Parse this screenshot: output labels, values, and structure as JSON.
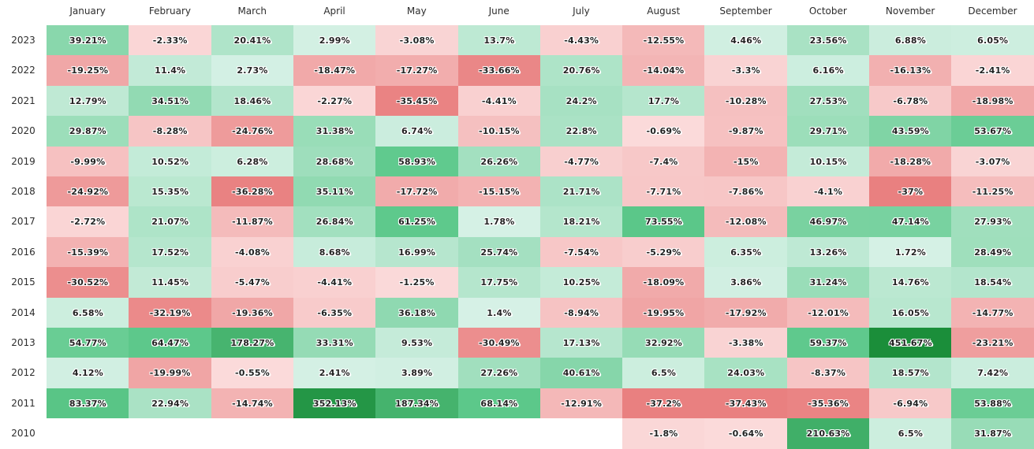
{
  "chart_data": {
    "type": "heatmap",
    "unit": "%",
    "columns": [
      "January",
      "February",
      "March",
      "April",
      "May",
      "June",
      "July",
      "August",
      "September",
      "October",
      "November",
      "December"
    ],
    "rows": [
      "2023",
      "2022",
      "2021",
      "2020",
      "2019",
      "2018",
      "2017",
      "2016",
      "2015",
      "2014",
      "2013",
      "2012",
      "2011",
      "2010"
    ],
    "values": [
      [
        39.21,
        -2.33,
        20.41,
        2.99,
        -3.08,
        13.7,
        -4.43,
        -12.55,
        4.46,
        23.56,
        6.88,
        6.05
      ],
      [
        -19.25,
        11.4,
        2.73,
        -18.47,
        -17.27,
        -33.66,
        20.76,
        -14.04,
        -3.3,
        6.16,
        -16.13,
        -2.41
      ],
      [
        12.79,
        34.51,
        18.46,
        -2.27,
        -35.45,
        -4.41,
        24.2,
        17.7,
        -10.28,
        27.53,
        -6.78,
        -18.98
      ],
      [
        29.87,
        -8.28,
        -24.76,
        31.38,
        6.74,
        -10.15,
        22.8,
        -0.69,
        -9.87,
        29.71,
        43.59,
        53.67
      ],
      [
        -9.99,
        10.52,
        6.28,
        28.68,
        58.93,
        26.26,
        -4.77,
        -7.4,
        -15,
        10.15,
        -18.28,
        -3.07
      ],
      [
        -24.92,
        15.35,
        -36.28,
        35.11,
        -17.72,
        -15.15,
        21.71,
        -7.71,
        -7.86,
        -4.1,
        -37,
        -11.25
      ],
      [
        -2.72,
        21.07,
        -11.87,
        26.84,
        61.25,
        1.78,
        18.21,
        73.55,
        -12.08,
        46.97,
        47.14,
        27.93
      ],
      [
        -15.39,
        17.52,
        -4.08,
        8.68,
        16.99,
        25.74,
        -7.54,
        -5.29,
        6.35,
        13.26,
        1.72,
        28.49
      ],
      [
        -30.52,
        11.45,
        -5.47,
        -4.41,
        -1.25,
        17.75,
        10.25,
        -18.09,
        3.86,
        31.24,
        14.76,
        18.54
      ],
      [
        6.58,
        -32.19,
        -19.36,
        -6.35,
        36.18,
        1.4,
        -8.94,
        -19.95,
        -17.92,
        -12.01,
        16.05,
        -14.77
      ],
      [
        54.77,
        64.47,
        178.27,
        33.31,
        9.53,
        -30.49,
        17.13,
        32.92,
        -3.38,
        59.37,
        451.67,
        -23.21
      ],
      [
        4.12,
        -19.99,
        -0.55,
        2.41,
        3.89,
        27.26,
        40.61,
        6.5,
        24.03,
        -8.37,
        18.57,
        7.42
      ],
      [
        83.37,
        22.94,
        -14.74,
        352.13,
        187.34,
        68.14,
        -12.91,
        -37.2,
        -37.43,
        -35.36,
        -6.94,
        53.88
      ],
      [
        null,
        null,
        null,
        null,
        null,
        null,
        null,
        -1.8,
        -0.64,
        210.63,
        6.5,
        31.87
      ]
    ],
    "colors": {
      "positive_light": "#d9f2e8",
      "positive_mid": "#5ec98c",
      "positive_dark": "#1b8e3a",
      "negative_light": "#fbdcdc",
      "negative_mid": "#f0a5a5",
      "negative_dark": "#e98080",
      "empty": "#ffffff"
    },
    "grid": false,
    "legend": "none"
  }
}
